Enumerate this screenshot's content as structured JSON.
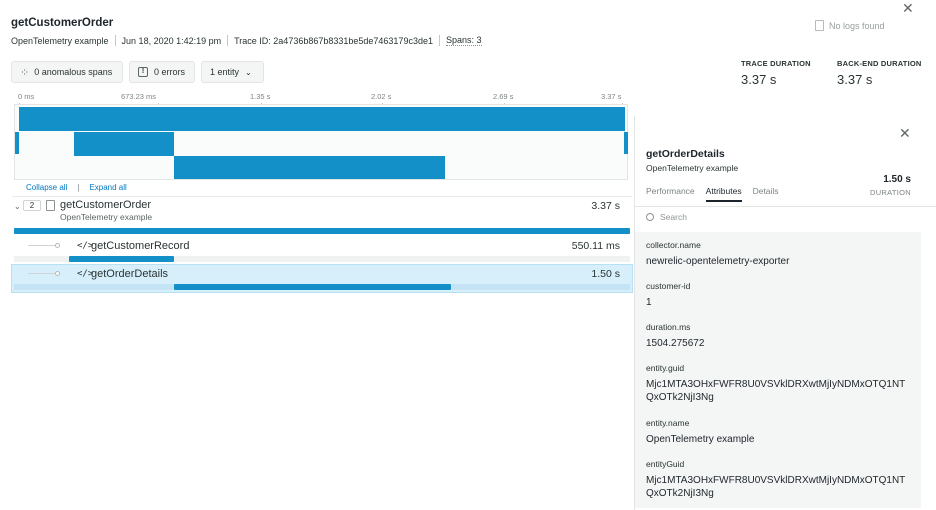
{
  "header": {
    "title": "getCustomerOrder",
    "service": "OpenTelemetry example",
    "timestamp": "Jun 18, 2020 1:42:19 pm",
    "trace_id": "Trace ID: 2a4736b867b8331be5de7463179c3de1",
    "spans_count": "Spans: 3",
    "no_logs": "No logs found"
  },
  "filters": {
    "anomalous": "0 anomalous spans",
    "errors": "0 errors",
    "entity": "1 entity"
  },
  "stats": {
    "trace_duration_label": "TRACE DURATION",
    "trace_duration_value": "3.37 s",
    "backend_duration_label": "BACK-END DURATION",
    "backend_duration_value": "3.37 s"
  },
  "timeline": {
    "ticks": [
      "0 ms",
      "673.23 ms",
      "1.35 s",
      "2.02 s",
      "2.69 s",
      "3.37 s"
    ],
    "collapse_all": "Collapse all",
    "expand_all": "Expand all"
  },
  "spans": [
    {
      "name": "getCustomerOrder",
      "service": "OpenTelemetry example",
      "duration": "3.37 s",
      "child_count": "2",
      "start": 0.0,
      "end": 1.0
    },
    {
      "name": "getCustomerRecord",
      "duration": "550.11 ms",
      "start": 0.09,
      "end": 0.26
    },
    {
      "name": "getOrderDetails",
      "duration": "1.50 s",
      "start": 0.26,
      "end": 0.71
    }
  ],
  "panel": {
    "title": "getOrderDetails",
    "service": "OpenTelemetry example",
    "duration": "1.50 s",
    "duration_label": "DURATION",
    "tabs": [
      "Performance",
      "Attributes",
      "Details"
    ],
    "active_tab": "Attributes",
    "search_placeholder": "Search",
    "attributes": [
      {
        "key": "collector.name",
        "value": "newrelic-opentelemetry-exporter"
      },
      {
        "key": "customer-id",
        "value": "1"
      },
      {
        "key": "duration.ms",
        "value": "1504.275672"
      },
      {
        "key": "entity.guid",
        "value": "Mjc1MTA3OHxFWFR8U0VSVklDRXwtMjIyNDMxOTQ1NTQxOTk2NjI3Ng"
      },
      {
        "key": "entity.name",
        "value": "OpenTelemetry example"
      },
      {
        "key": "entityGuid",
        "value": "Mjc1MTA3OHxFWFR8U0VSVklDRXwtMjIyNDMxOTQ1NTQxOTk2NjI3Ng"
      }
    ]
  }
}
